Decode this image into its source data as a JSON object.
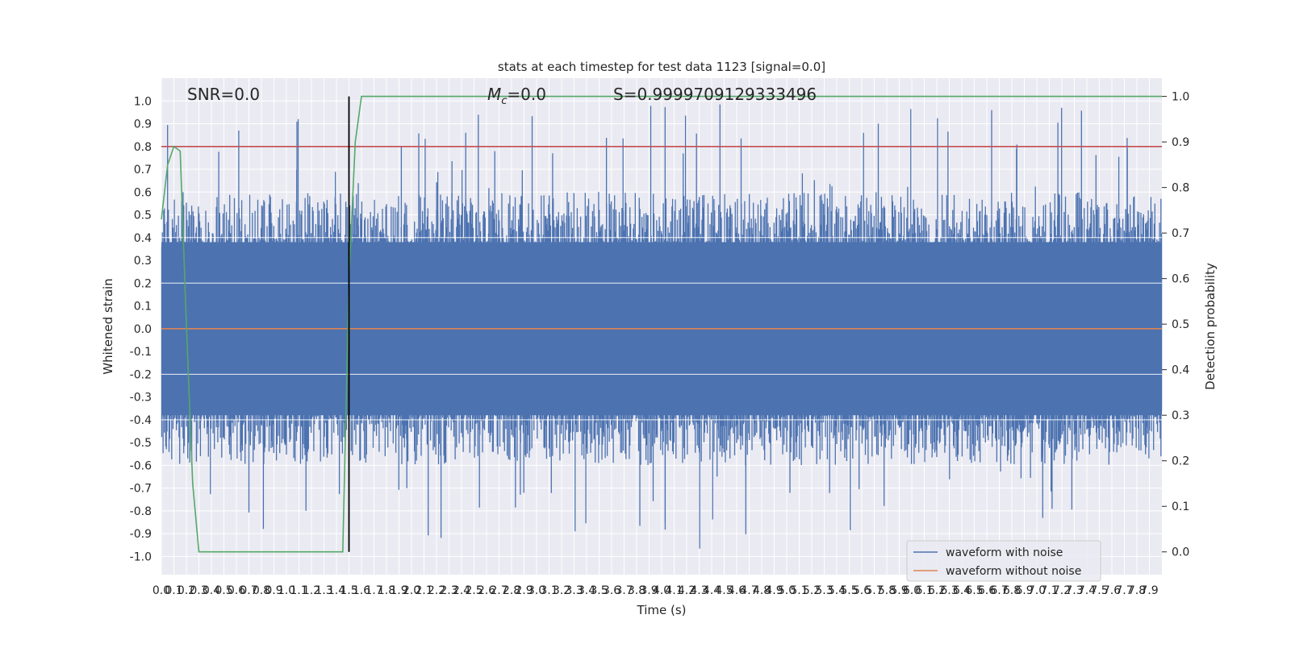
{
  "chart_data": {
    "type": "line",
    "title": "stats at each timestep for test data 1123 [signal=0.0]",
    "xlabel": "Time (s)",
    "ylabel_left": "Whitened strain",
    "ylabel_right": "Detection probability",
    "xlim": [
      0.0,
      8.0
    ],
    "ylim_left": [
      -1.08,
      1.1
    ],
    "ylim_right": [
      -0.05,
      1.04
    ],
    "x_ticks": [
      "0.0",
      "0.1",
      "0.2",
      "0.3",
      "0.4",
      "0.5",
      "0.6",
      "0.7",
      "0.8",
      "0.9",
      "1.0",
      "1.1",
      "1.2",
      "1.3",
      "1.4",
      "1.5",
      "1.6",
      "1.7",
      "1.8",
      "1.9",
      "2.0",
      "2.1",
      "2.2",
      "2.3",
      "2.4",
      "2.5",
      "2.6",
      "2.7",
      "2.8",
      "2.9",
      "3.0",
      "3.1",
      "3.2",
      "3.3",
      "3.4",
      "3.5",
      "3.6",
      "3.7",
      "3.8",
      "3.9",
      "4.0",
      "4.1",
      "4.2",
      "4.3",
      "4.4",
      "4.5",
      "4.6",
      "4.7",
      "4.8",
      "4.9",
      "5.0",
      "5.1",
      "5.2",
      "5.3",
      "5.4",
      "5.5",
      "5.6",
      "5.7",
      "5.8",
      "5.9",
      "6.0",
      "6.1",
      "6.2",
      "6.3",
      "6.4",
      "6.5",
      "6.6",
      "6.7",
      "6.8",
      "6.9",
      "7.0",
      "7.1",
      "7.2",
      "7.3",
      "7.4",
      "7.5",
      "7.6",
      "7.7",
      "7.8",
      "7.9"
    ],
    "y_ticks_left": [
      "-1.0",
      "-0.9",
      "-0.8",
      "-0.7",
      "-0.6",
      "-0.5",
      "-0.4",
      "-0.3",
      "-0.2",
      "-0.1",
      "0.0",
      "0.1",
      "0.2",
      "0.3",
      "0.4",
      "0.5",
      "0.6",
      "0.7",
      "0.8",
      "0.9",
      "1.0"
    ],
    "y_ticks_right": [
      "0.0",
      "0.1",
      "0.2",
      "0.3",
      "0.4",
      "0.5",
      "0.6",
      "0.7",
      "0.8",
      "0.9",
      "1.0"
    ],
    "grid": true,
    "legend_position": "lower-right",
    "annotations": {
      "snr": "SNR=0.0",
      "mc_symbol": "M",
      "mc_subscript": "c",
      "mc_value": "=0.0",
      "s": "S=0.9999709129333496"
    },
    "series": [
      {
        "name": "waveform with noise",
        "color": "#4c72b0",
        "note_style": "dense noise, approx amplitude range",
        "envelope_typical": [
          -0.6,
          0.6
        ],
        "envelope_extremes": [
          -0.98,
          1.0
        ]
      },
      {
        "name": "waveform without noise",
        "color": "#dd8452",
        "values_constant": 0.0
      },
      {
        "name": "detection probability",
        "axis": "right",
        "color": "#55a868",
        "x": [
          0.0,
          0.05,
          0.1,
          0.15,
          0.2,
          0.25,
          0.3,
          1.45,
          1.5,
          1.55,
          1.6,
          8.0
        ],
        "y": [
          0.73,
          0.85,
          0.89,
          0.88,
          0.5,
          0.15,
          0.0,
          0.0,
          0.6,
          0.9,
          1.0,
          1.0
        ]
      }
    ],
    "hlines": [
      {
        "y": 0.8,
        "axis": "left",
        "color": "#c44e52"
      }
    ],
    "vlines": [
      {
        "x": 1.5,
        "color": "#000000"
      }
    ]
  }
}
